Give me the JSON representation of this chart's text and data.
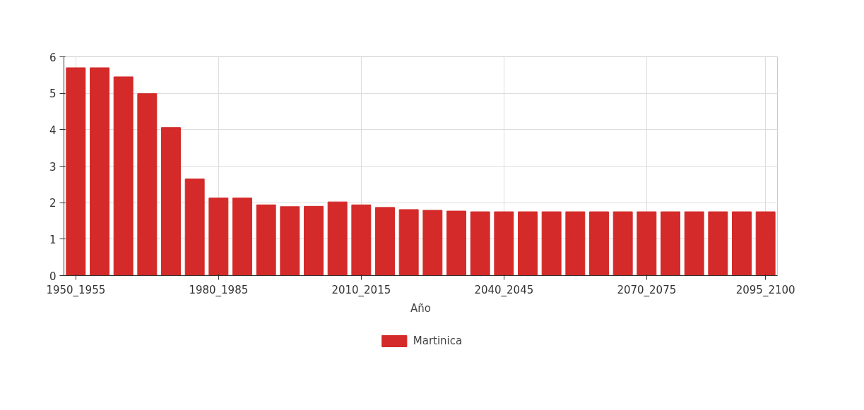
{
  "chart_data": {
    "type": "bar",
    "xlabel": "Año",
    "categories": [
      "1950_1955",
      null,
      null,
      null,
      null,
      null,
      "1980_1985",
      null,
      null,
      null,
      null,
      null,
      "2010_2015",
      null,
      null,
      null,
      null,
      null,
      "2040_2045",
      null,
      null,
      null,
      null,
      null,
      "2070_2075",
      null,
      null,
      null,
      null,
      "2095_2100"
    ],
    "series": [
      {
        "name": "Martinica",
        "color": "#d42a2a",
        "values": [
          5.7,
          5.7,
          5.45,
          4.99,
          4.06,
          2.65,
          2.13,
          2.13,
          1.94,
          1.89,
          1.9,
          2.02,
          1.94,
          1.87,
          1.81,
          1.79,
          1.77,
          1.75,
          1.75,
          1.75,
          1.75,
          1.75,
          1.75,
          1.75,
          1.75,
          1.75,
          1.75,
          1.75,
          1.75,
          1.75
        ]
      }
    ],
    "ylim": [
      0,
      6
    ],
    "yticks": [
      0,
      1,
      2,
      3,
      4,
      5,
      6
    ],
    "grid": true,
    "legend": "bottom"
  }
}
